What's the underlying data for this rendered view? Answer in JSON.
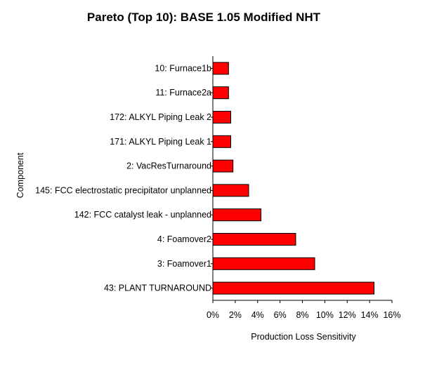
{
  "chart_data": {
    "type": "bar",
    "orientation": "horizontal",
    "title": "Pareto (Top 10): BASE 1.05 Modified NHT",
    "xlabel": "Production Loss Sensitivity",
    "ylabel": "Component",
    "xlim": [
      0,
      16
    ],
    "xticks": [
      "0%",
      "2%",
      "4%",
      "6%",
      "8%",
      "10%",
      "12%",
      "14%",
      "16%"
    ],
    "categories": [
      "10: Furnace1b",
      "11: Furnace2a",
      "172: ALKYL Piping Leak 2",
      "171: ALKYL Piping Leak 1",
      "2: VacResTurnaround",
      "145: FCC electrostatic precipitator unplanned",
      "142: FCC catalyst leak - unplanned",
      "4: Foamover2",
      "3: Foamover1",
      "43: PLANT TURNAROUND"
    ],
    "values": [
      1.4,
      1.4,
      1.6,
      1.6,
      1.8,
      3.2,
      4.3,
      7.4,
      9.1,
      14.4
    ],
    "bar_color": "#ff0000",
    "grid": false,
    "legend": "none"
  }
}
